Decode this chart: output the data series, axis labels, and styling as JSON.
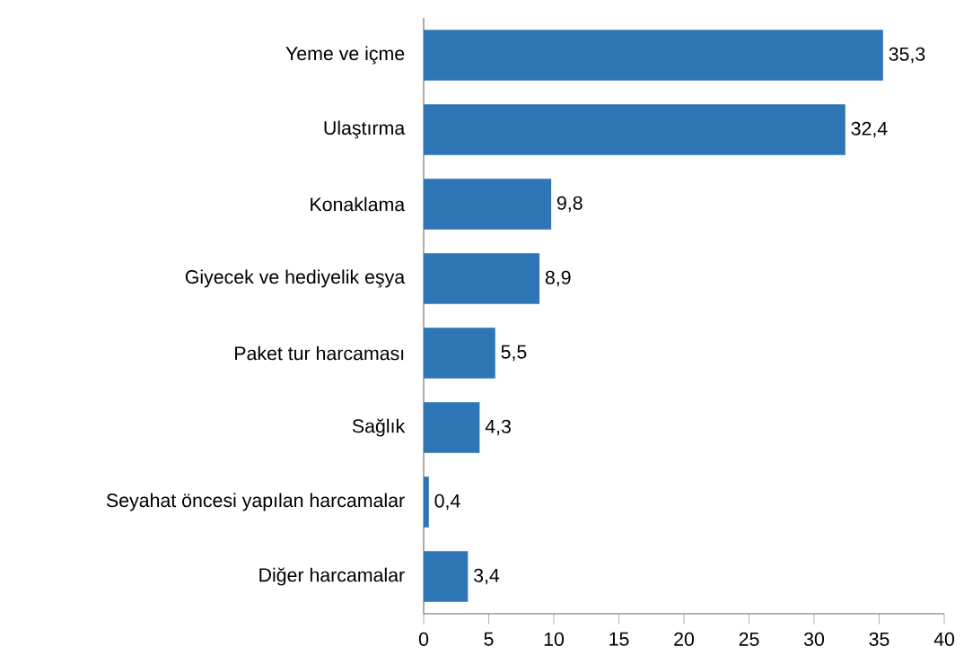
{
  "chart_data": {
    "type": "bar",
    "orientation": "horizontal",
    "categories": [
      "Yeme ve içme",
      "Ulaştırma",
      "Konaklama",
      "Giyecek ve hediyelik eşya",
      "Paket tur harcaması",
      "Sağlık",
      "Seyahat öncesi yapılan harcamalar",
      "Diğer harcamalar"
    ],
    "values": [
      35.3,
      32.4,
      9.8,
      8.9,
      5.5,
      4.3,
      0.4,
      3.4
    ],
    "value_labels": [
      "35,3",
      "32,4",
      "9,8",
      "8,9",
      "5,5",
      "4,3",
      "0,4",
      "3,4"
    ],
    "color": "#2e75b6",
    "xlim": [
      0,
      40
    ],
    "xticks": [
      0,
      5,
      10,
      15,
      20,
      25,
      30,
      35,
      40
    ]
  }
}
